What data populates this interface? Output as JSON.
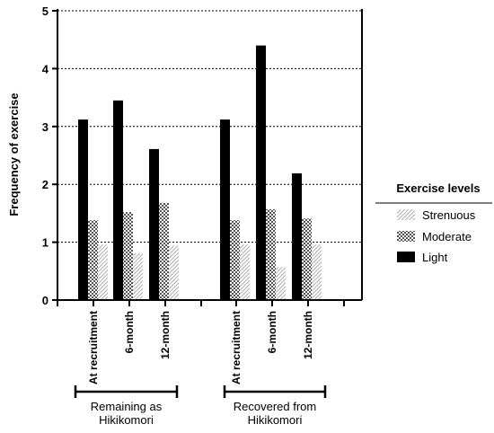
{
  "chart_data": {
    "type": "bar",
    "ylabel": "Frequency of exercise",
    "xlabel": "",
    "ylim": [
      0,
      5
    ],
    "yticks": [
      0,
      1,
      2,
      3,
      4,
      5
    ],
    "grid": "horizontal dotted",
    "categories": [
      "At recruitment",
      "6-month",
      "12-month",
      "At recruitment",
      "6-month",
      "12-month"
    ],
    "groups": [
      {
        "label": "Remaining as Hikikomori",
        "category_indices": [
          0,
          1,
          2
        ]
      },
      {
        "label": "Recovered from Hikikomori",
        "category_indices": [
          3,
          4,
          5
        ]
      }
    ],
    "series": [
      {
        "name": "Light",
        "pattern": "solid",
        "color": "#000000",
        "values": [
          3.12,
          3.45,
          2.61,
          3.12,
          4.4,
          2.19
        ]
      },
      {
        "name": "Moderate",
        "pattern": "checker",
        "color": "#808080",
        "values": [
          1.38,
          1.52,
          1.68,
          1.38,
          1.57,
          1.41
        ]
      },
      {
        "name": "Strenuous",
        "pattern": "diagonal-hatch",
        "color": "#c8c8c8",
        "values": [
          0.96,
          0.81,
          0.94,
          0.96,
          0.57,
          0.96
        ]
      }
    ],
    "legend": {
      "title": "Exercise levels",
      "placement": "right",
      "order": [
        "Strenuous",
        "Moderate",
        "Light"
      ]
    }
  }
}
